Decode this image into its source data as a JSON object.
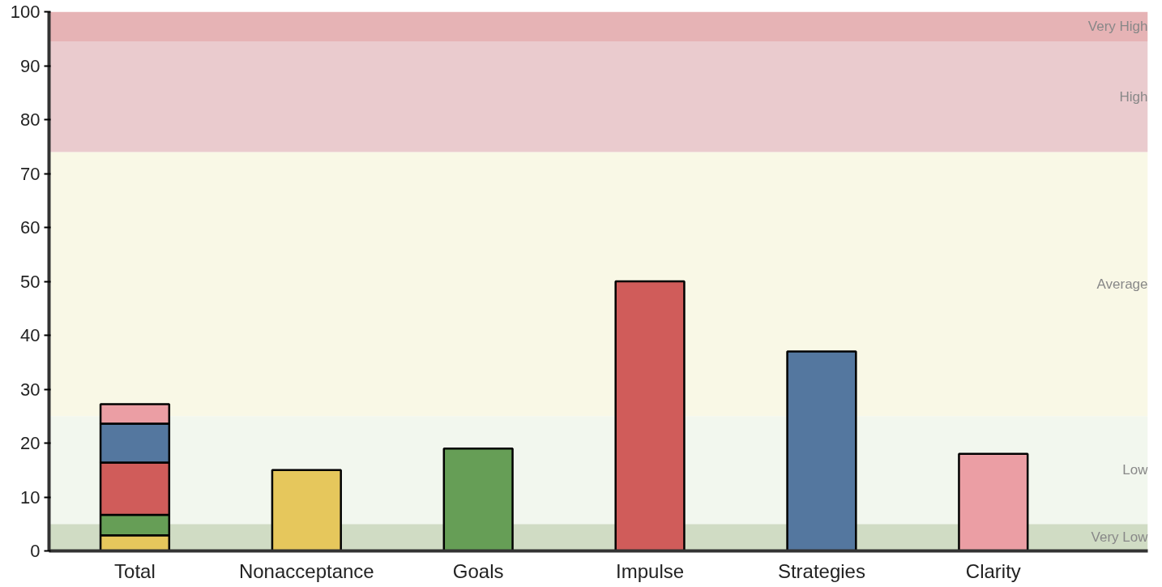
{
  "chart_data": {
    "type": "bar",
    "stacked": true,
    "categories": [
      "Total",
      "Nonacceptance",
      "Goals",
      "Impulse",
      "Strategies",
      "Clarity"
    ],
    "series": [
      {
        "color": "#e6c75c",
        "values": [
          2.9,
          15,
          null,
          null,
          null,
          null
        ]
      },
      {
        "color": "#669e56",
        "values": [
          3.8,
          null,
          19,
          null,
          null,
          null
        ]
      },
      {
        "color": "#d05c5a",
        "values": [
          9.7,
          null,
          null,
          50,
          null,
          null
        ]
      },
      {
        "color": "#54779f",
        "values": [
          7.2,
          null,
          null,
          null,
          37,
          null
        ]
      },
      {
        "color": "#eb9ea4",
        "values": [
          3.6,
          null,
          null,
          null,
          null,
          18
        ]
      }
    ],
    "ylim": [
      0,
      100
    ],
    "yticks": [
      0,
      10,
      20,
      30,
      40,
      50,
      60,
      70,
      80,
      90,
      100
    ],
    "grid": false,
    "bands": [
      {
        "axis": "y",
        "from": 0,
        "to": 5,
        "label": "Very Low",
        "color": "#d0dcc4"
      },
      {
        "axis": "y",
        "from": 5,
        "to": 25,
        "label": "Low",
        "color": "#f2f7ee"
      },
      {
        "axis": "y",
        "from": 25,
        "to": 74,
        "label": "Average",
        "color": "#f9f8e6"
      },
      {
        "axis": "y",
        "from": 74,
        "to": 94.5,
        "label": "High",
        "color": "#eacbce"
      },
      {
        "axis": "y",
        "from": 94.5,
        "to": 100,
        "label": "Very High",
        "color": "#e6b3b5"
      }
    ]
  }
}
